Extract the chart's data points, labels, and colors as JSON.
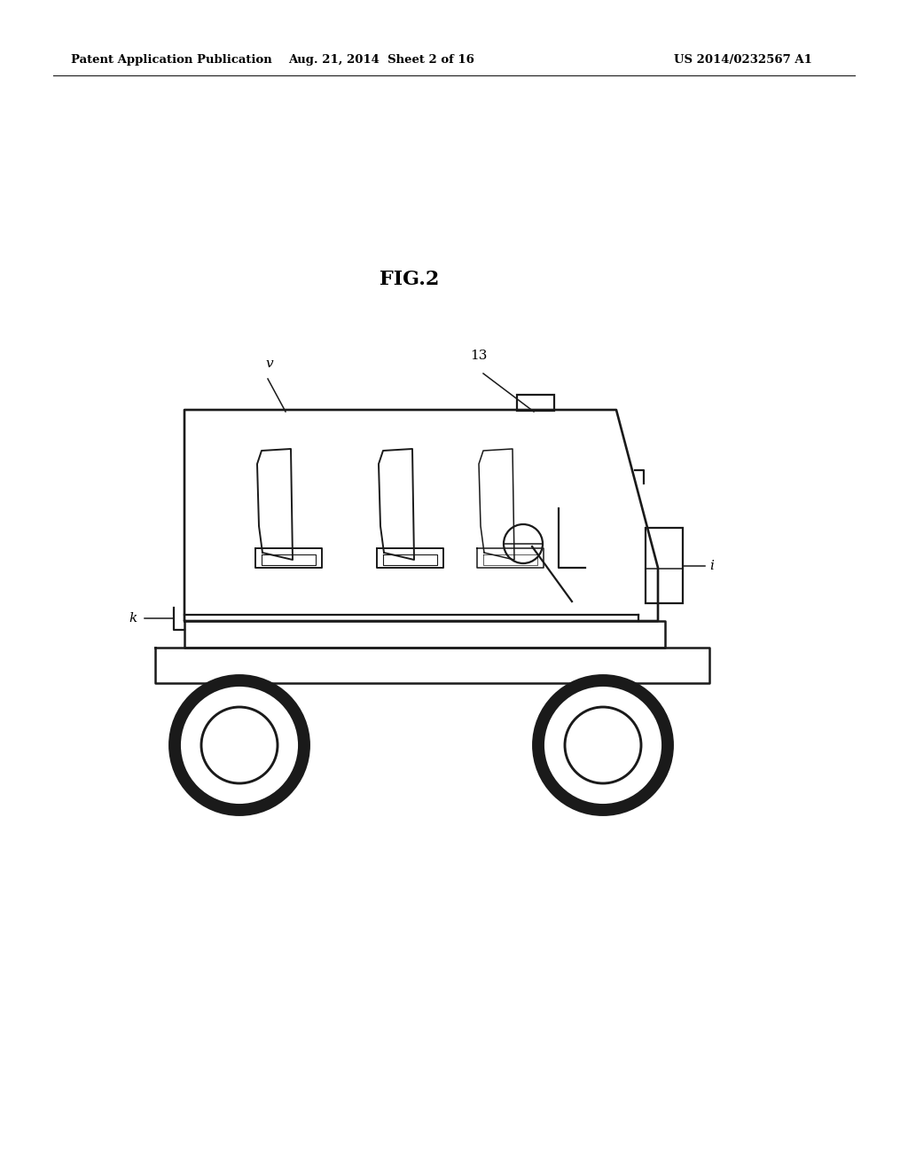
{
  "bg_color": "#ffffff",
  "line_color": "#1a1a1a",
  "lw": 1.6,
  "fig_label": "FIG.2",
  "header_left": "Patent Application Publication",
  "header_mid": "Aug. 21, 2014  Sheet 2 of 16",
  "header_right": "US 2014/0232567 A1",
  "label_v": "v",
  "label_13": "13",
  "label_k": "k",
  "label_i": "i"
}
